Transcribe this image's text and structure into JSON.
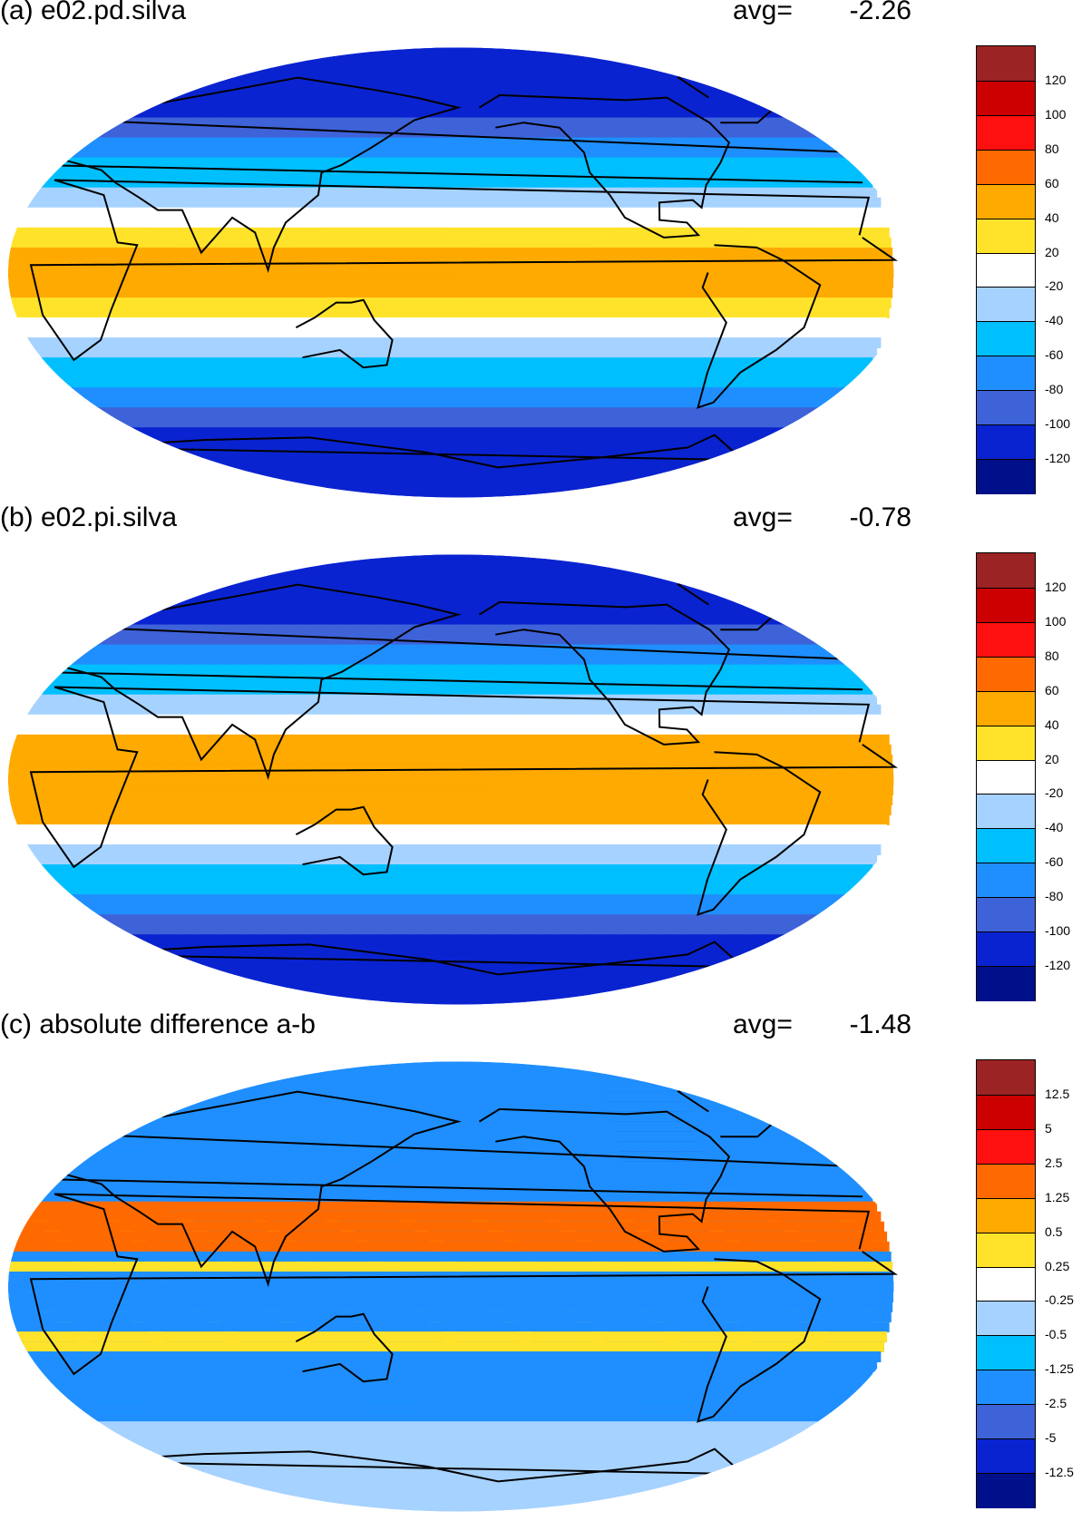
{
  "chart_data": [
    {
      "type": "heatmap",
      "title": "(a) e02.pd.silva",
      "avg_label": "avg=",
      "avg_value": "-2.26",
      "colorbar": {
        "labels": [
          "120",
          "100",
          "80",
          "60",
          "40",
          "20",
          "-20",
          "-40",
          "-60",
          "-80",
          "-100",
          "-120"
        ],
        "colors": [
          "#9c2323",
          "#cc0000",
          "#ff1010",
          "#ff6a00",
          "#ffaa00",
          "#ffe32a",
          "#ffffff",
          "#a6d2ff",
          "#00bfff",
          "#1f8fff",
          "#3e62d8",
          "#0a23d0",
          "#00108a"
        ]
      },
      "projection": "global map (Pacific-centred)",
      "field_pattern": "positive values in the tropics (max over Indian Ocean / Maritime Continent), negative values toward both poles"
    },
    {
      "type": "heatmap",
      "title": "(b) e02.pi.silva",
      "avg_label": "avg=",
      "avg_value": "-0.78",
      "colorbar": {
        "labels": [
          "120",
          "100",
          "80",
          "60",
          "40",
          "20",
          "-20",
          "-40",
          "-60",
          "-80",
          "-100",
          "-120"
        ],
        "colors": [
          "#9c2323",
          "#cc0000",
          "#ff1010",
          "#ff6a00",
          "#ffaa00",
          "#ffe32a",
          "#ffffff",
          "#a6d2ff",
          "#00bfff",
          "#1f8fff",
          "#3e62d8",
          "#0a23d0",
          "#00108a"
        ]
      },
      "projection": "global map (Pacific-centred)",
      "field_pattern": "positive values in the tropics (max over Indian Ocean / Maritime Continent), negative values toward both poles"
    },
    {
      "type": "heatmap",
      "title": "(c) absolute difference a-b",
      "avg_label": "avg=",
      "avg_value": "-1.48",
      "colorbar": {
        "labels": [
          "12.5",
          "5",
          "2.5",
          "1.25",
          "0.5",
          "0.25",
          "-0.25",
          "-0.5",
          "-1.25",
          "-2.5",
          "-5",
          "-12.5"
        ],
        "colors": [
          "#9c2323",
          "#cc0000",
          "#ff1010",
          "#ff6a00",
          "#ffaa00",
          "#ffe32a",
          "#ffffff",
          "#a6d2ff",
          "#00bfff",
          "#1f8fff",
          "#3e62d8",
          "#0a23d0",
          "#00108a"
        ]
      },
      "projection": "global map (Pacific-centred)",
      "field_pattern": "mostly negative (blue) values; positive values over North Africa / Arabia and scattered tropical ocean cells"
    }
  ]
}
